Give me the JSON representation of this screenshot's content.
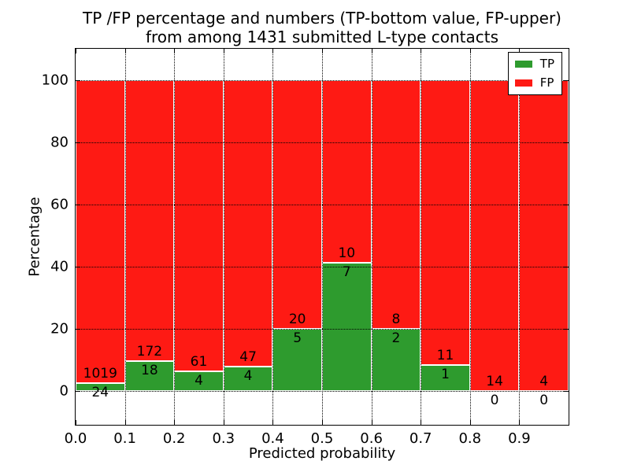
{
  "header": {
    "title_line1": "TP /FP percentage and numbers (TP-bottom value, FP-upper)",
    "title_line2": "from among 1431 submitted L-type contacts"
  },
  "chart_data": {
    "type": "bar",
    "stacked": true,
    "title": "TP /FP percentage and numbers (TP-bottom value, FP-upper) from among 1431 submitted L-type contacts",
    "xlabel": "Predicted probability",
    "ylabel": "Percentage",
    "total_contacts": 1431,
    "bins": [
      "0.0-0.1",
      "0.1-0.2",
      "0.2-0.3",
      "0.3-0.4",
      "0.4-0.5",
      "0.5-0.6",
      "0.6-0.7",
      "0.7-0.8",
      "0.8-0.9",
      "0.9-1.0"
    ],
    "series": [
      {
        "name": "TP",
        "color": "#2e9b2e",
        "counts": [
          24,
          18,
          4,
          4,
          5,
          7,
          2,
          1,
          0,
          0
        ]
      },
      {
        "name": "FP",
        "color": "#fe1a14",
        "counts": [
          1019,
          172,
          61,
          47,
          20,
          10,
          8,
          11,
          14,
          4
        ]
      }
    ],
    "tp_percent_of_bin": [
      2.3,
      9.5,
      6.2,
      7.8,
      20.0,
      41.2,
      20.0,
      8.3,
      0.0,
      0.0
    ],
    "bar_total_percent": 100,
    "x_ticks": [
      "0.0",
      "0.1",
      "0.2",
      "0.3",
      "0.4",
      "0.5",
      "0.6",
      "0.7",
      "0.8",
      "0.9"
    ],
    "y_ticks": [
      0,
      20,
      40,
      60,
      80,
      100
    ],
    "xlim": [
      0.0,
      1.0
    ],
    "ylim": [
      -11,
      110
    ],
    "grid": "dotted, drawn above bars",
    "bar_edge_color": "#ffffff",
    "legend": {
      "position": "upper right",
      "entries": [
        {
          "label": "TP",
          "color": "#2e9b2e"
        },
        {
          "label": "FP",
          "color": "#fe1a14"
        }
      ]
    }
  }
}
